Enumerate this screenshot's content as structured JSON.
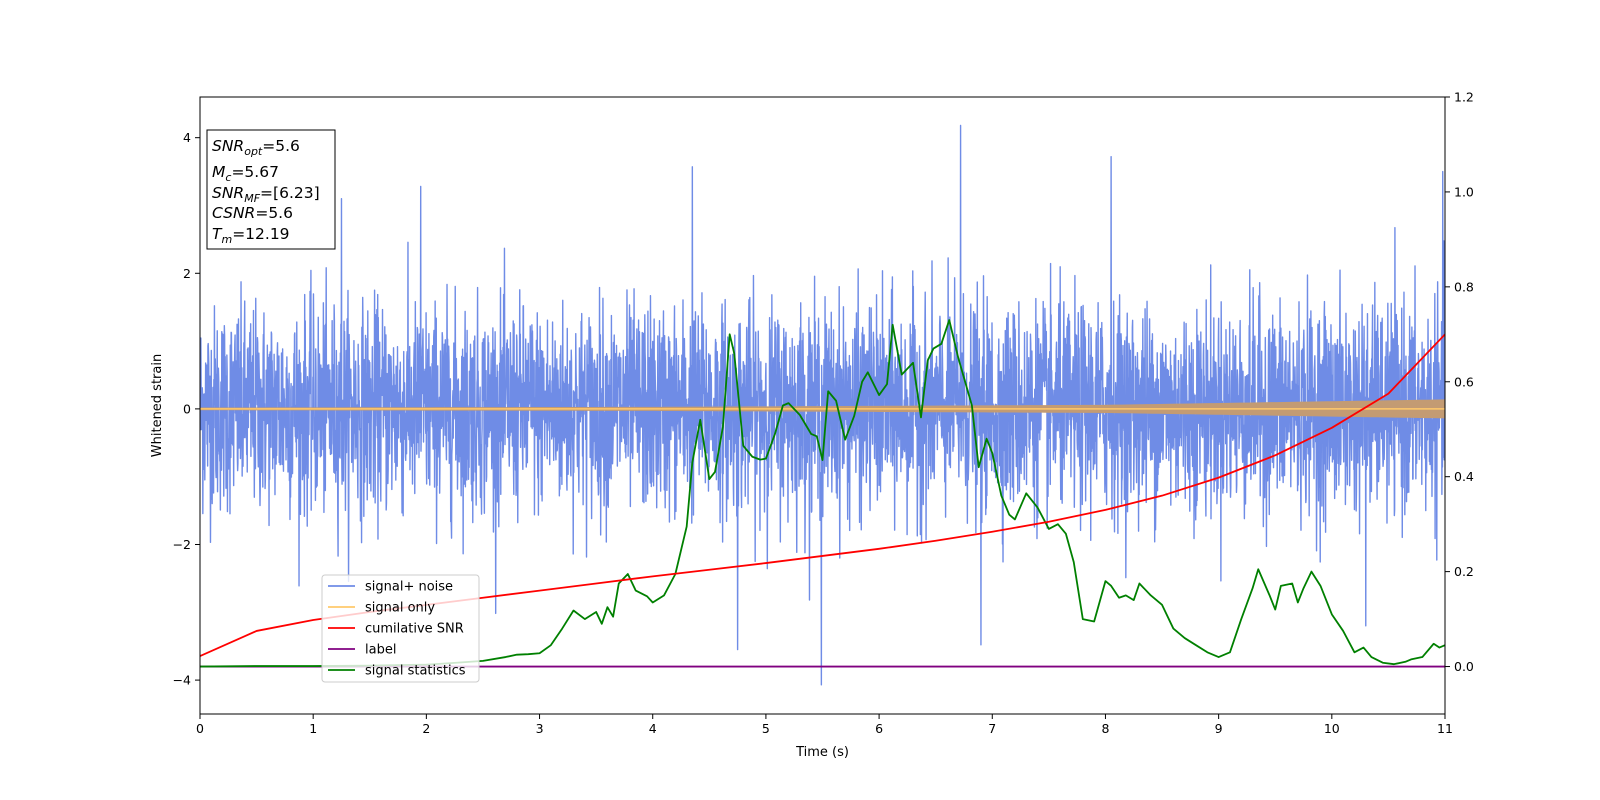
{
  "chart_data": {
    "type": "line",
    "title": "",
    "xlabel": "Time (s)",
    "ylabel": "Whitened strain",
    "xlim": [
      0,
      11
    ],
    "ylim": [
      -4.5,
      4.6
    ],
    "y2lim": [
      -0.1,
      1.2
    ],
    "xticks": [
      "0",
      "1",
      "2",
      "3",
      "4",
      "5",
      "6",
      "7",
      "8",
      "9",
      "10",
      "11"
    ],
    "yticks": [
      "−4",
      "−2",
      "0",
      "2",
      "4"
    ],
    "y2ticks": [
      "0.0",
      "0.2",
      "0.4",
      "0.6",
      "0.8",
      "1.0",
      "1.2"
    ],
    "grid": false,
    "legend_position": "lower-left",
    "colors": {
      "signal_noise": "#6f8ce6",
      "signal_only": "#ffc96b",
      "cumulative_snr": "#ff0000",
      "label": "#800080",
      "signal_statistics": "#008000",
      "signal_only_envelope": "#c39b73"
    },
    "legend": [
      "signal+ noise",
      "signal only",
      "cumilative SNR",
      "label",
      "signal statistics"
    ],
    "info_box": {
      "line1_base": "SNR",
      "line1_sub": "opt",
      "line1_value": "=5.6",
      "line2_base": "M",
      "line2_sub": "c",
      "line2_value": "=5.67",
      "line3_base": "SNR",
      "line3_sub": "MF",
      "line3_value": "=[6.23]",
      "line4_base": "CSNR",
      "line4_value": "=5.6",
      "line5_base": "T",
      "line5_sub": "m",
      "line5_value": "=12.19"
    },
    "series": [
      {
        "name": "signal+ noise",
        "axis": "left",
        "style": "dense noise, band about ±2 with spikes to about ±4",
        "peaks": [
          {
            "x": 6.72,
            "y": 4.18
          },
          {
            "x": 8.05,
            "y": 3.72
          },
          {
            "x": 4.35,
            "y": 3.57
          },
          {
            "x": 10.98,
            "y": 3.5
          },
          {
            "x": 5.49,
            "y": -4.07
          },
          {
            "x": 4.75,
            "y": -3.55
          },
          {
            "x": 6.9,
            "y": -3.48
          },
          {
            "x": 1.95,
            "y": 3.28
          },
          {
            "x": 1.25,
            "y": 3.1
          },
          {
            "x": 10.3,
            "y": -3.2
          }
        ]
      },
      {
        "name": "signal only",
        "axis": "left",
        "style": "chirp oscillation around 0, amplitude growing",
        "amplitude": {
          "x": [
            0,
            4,
            8,
            11
          ],
          "y": [
            0.02,
            0.03,
            0.06,
            0.14
          ]
        }
      },
      {
        "name": "cumilative SNR",
        "axis": "right",
        "x": [
          0,
          0.5,
          1,
          1.5,
          2,
          2.5,
          3,
          3.5,
          4,
          4.5,
          5,
          5.5,
          6,
          6.5,
          7,
          7.5,
          8,
          8.5,
          9,
          9.5,
          10,
          10.5,
          11
        ],
        "y": [
          0.022,
          0.075,
          0.098,
          0.115,
          0.13,
          0.145,
          0.16,
          0.175,
          0.19,
          0.204,
          0.218,
          0.233,
          0.248,
          0.265,
          0.284,
          0.305,
          0.33,
          0.36,
          0.398,
          0.445,
          0.503,
          0.575,
          0.7
        ]
      },
      {
        "name": "label",
        "axis": "right",
        "x": [
          0,
          11
        ],
        "y": [
          0.0,
          0.0
        ]
      },
      {
        "name": "signal statistics",
        "axis": "right",
        "x": [
          0,
          0.5,
          1,
          1.5,
          2,
          2.2,
          2.5,
          2.7,
          2.8,
          2.9,
          3.0,
          3.1,
          3.2,
          3.3,
          3.4,
          3.5,
          3.55,
          3.6,
          3.65,
          3.7,
          3.78,
          3.85,
          3.95,
          4.0,
          4.1,
          4.2,
          4.3,
          4.35,
          4.42,
          4.5,
          4.55,
          4.62,
          4.68,
          4.72,
          4.8,
          4.88,
          4.95,
          5.0,
          5.08,
          5.15,
          5.2,
          5.3,
          5.4,
          5.45,
          5.5,
          5.55,
          5.62,
          5.7,
          5.78,
          5.85,
          5.9,
          6.0,
          6.07,
          6.12,
          6.2,
          6.3,
          6.37,
          6.43,
          6.48,
          6.55,
          6.62,
          6.7,
          6.76,
          6.82,
          6.88,
          6.95,
          7.0,
          7.08,
          7.15,
          7.2,
          7.3,
          7.4,
          7.5,
          7.58,
          7.65,
          7.72,
          7.8,
          7.9,
          8.0,
          8.05,
          8.12,
          8.18,
          8.25,
          8.3,
          8.4,
          8.5,
          8.6,
          8.7,
          8.8,
          8.9,
          9.0,
          9.1,
          9.2,
          9.3,
          9.35,
          9.45,
          9.5,
          9.55,
          9.65,
          9.7,
          9.75,
          9.82,
          9.9,
          10.0,
          10.1,
          10.2,
          10.28,
          10.35,
          10.45,
          10.55,
          10.65,
          10.7,
          10.8,
          10.9,
          10.95,
          11.0
        ],
        "y": [
          0.0,
          0.001,
          0.001,
          0.002,
          0.004,
          0.007,
          0.012,
          0.02,
          0.025,
          0.026,
          0.028,
          0.045,
          0.08,
          0.118,
          0.1,
          0.115,
          0.09,
          0.125,
          0.105,
          0.175,
          0.195,
          0.16,
          0.148,
          0.135,
          0.15,
          0.195,
          0.295,
          0.43,
          0.52,
          0.395,
          0.41,
          0.505,
          0.7,
          0.66,
          0.465,
          0.442,
          0.436,
          0.438,
          0.49,
          0.55,
          0.555,
          0.53,
          0.49,
          0.485,
          0.435,
          0.58,
          0.56,
          0.478,
          0.528,
          0.6,
          0.62,
          0.572,
          0.595,
          0.72,
          0.615,
          0.64,
          0.525,
          0.645,
          0.67,
          0.68,
          0.73,
          0.65,
          0.6,
          0.55,
          0.42,
          0.48,
          0.45,
          0.36,
          0.32,
          0.31,
          0.365,
          0.335,
          0.29,
          0.3,
          0.28,
          0.22,
          0.1,
          0.095,
          0.18,
          0.17,
          0.145,
          0.15,
          0.14,
          0.175,
          0.15,
          0.13,
          0.08,
          0.06,
          0.045,
          0.03,
          0.02,
          0.03,
          0.1,
          0.165,
          0.205,
          0.15,
          0.12,
          0.17,
          0.175,
          0.135,
          0.165,
          0.2,
          0.17,
          0.11,
          0.075,
          0.03,
          0.04,
          0.02,
          0.008,
          0.005,
          0.01,
          0.015,
          0.02,
          0.048,
          0.04,
          0.045
        ]
      }
    ]
  }
}
